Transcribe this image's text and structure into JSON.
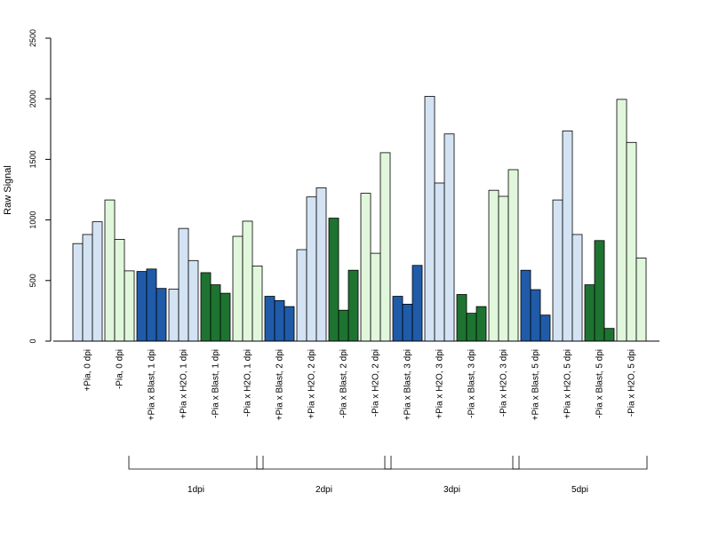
{
  "chart_data": {
    "type": "bar",
    "ylabel": "Raw Signal",
    "ylim": [
      0,
      2500
    ],
    "yticks": [
      "0",
      "500",
      "1000",
      "1500",
      "2000",
      "2500"
    ],
    "grid": false,
    "categories": [
      "+Pia, 0 dpi",
      "-Pia, 0 dpi",
      "+Pia x Blast, 1 dpi",
      "+Pia x H2O, 1 dpi",
      "-Pia x Blast, 1 dpi",
      "-Pia x H2O, 1 dpi",
      "+Pia x Blast, 2 dpi",
      "+Pia x H2O, 2 dpi",
      "-Pia x Blast, 2 dpi",
      "-Pia x H2O, 2 dpi",
      "+Pia x Blast, 3 dpi",
      "+Pia x H2O, 3 dpi",
      "-Pia x Blast, 3 dpi",
      "-Pia x H2O, 3 dpi",
      "+Pia x Blast, 5 dpi",
      "+Pia x H2O, 5 dpi",
      "-Pia x Blast, 5 dpi",
      "-Pia x H2O, 5 dpi"
    ],
    "replicates": [
      [
        805,
        880,
        985
      ],
      [
        1165,
        840,
        580
      ],
      [
        575,
        595,
        435
      ],
      [
        430,
        930,
        665
      ],
      [
        565,
        465,
        395
      ],
      [
        865,
        990,
        620
      ],
      [
        370,
        335,
        285
      ],
      [
        755,
        1190,
        1265
      ],
      [
        1015,
        255,
        585
      ],
      [
        1220,
        725,
        1555
      ],
      [
        370,
        305,
        625
      ],
      [
        2020,
        1305,
        1710
      ],
      [
        385,
        230,
        285
      ],
      [
        1245,
        1195,
        1415
      ],
      [
        585,
        425,
        215
      ],
      [
        1165,
        1735,
        880
      ],
      [
        465,
        830,
        105
      ],
      [
        1995,
        1640,
        685
      ]
    ],
    "bar_colors": [
      "#d3e3f4",
      "#e1f7dc",
      "#1f5ba8",
      "#d3e3f4",
      "#1e7331",
      "#e1f7dc",
      "#1f5ba8",
      "#d3e3f4",
      "#1e7331",
      "#e1f7dc",
      "#1f5ba8",
      "#d3e3f4",
      "#1e7331",
      "#e1f7dc",
      "#1f5ba8",
      "#d3e3f4",
      "#1e7331",
      "#e1f7dc"
    ],
    "groups": [
      {
        "label": "1dpi",
        "from": 2,
        "to": 5
      },
      {
        "label": "2dpi",
        "from": 6,
        "to": 9
      },
      {
        "label": "3dpi",
        "from": 10,
        "to": 13
      },
      {
        "label": "5dpi",
        "from": 14,
        "to": 17
      }
    ]
  }
}
